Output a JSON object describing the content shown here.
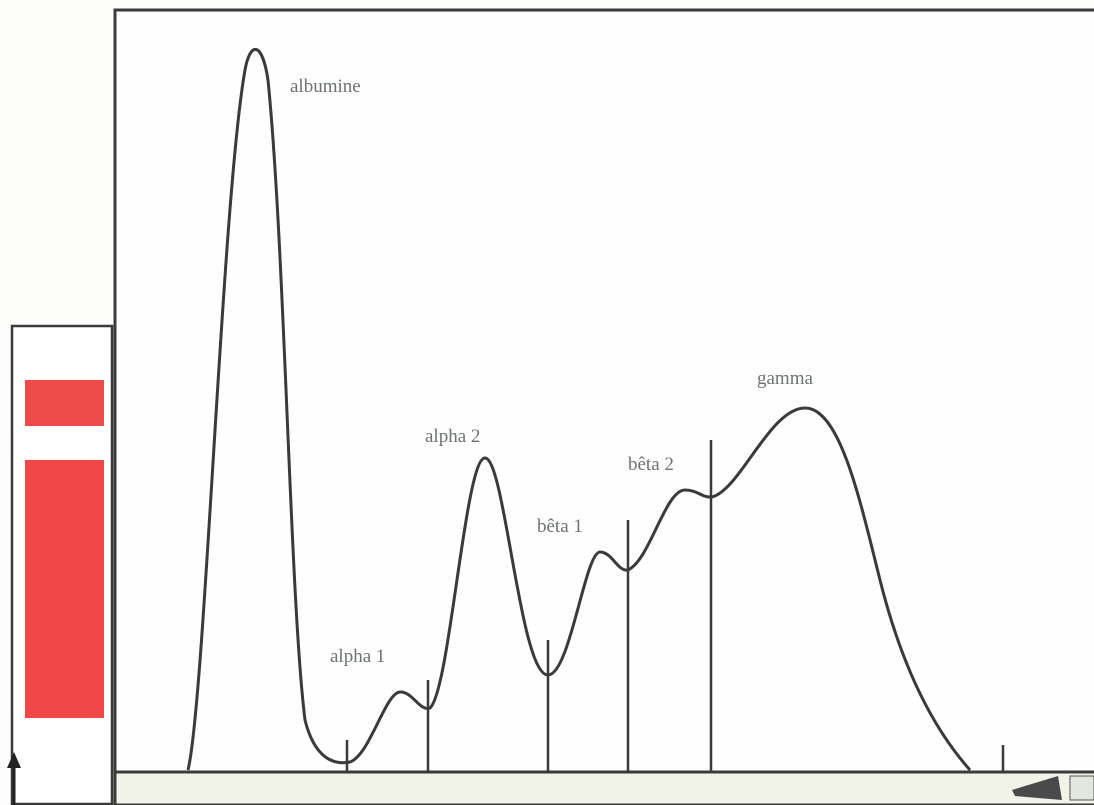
{
  "labels": {
    "albumin": "albumine",
    "alpha1": "alpha 1",
    "alpha2": "alpha 2",
    "beta1": "bêta 1",
    "beta2": "bêta 2",
    "gamma": "gamma"
  }
}
